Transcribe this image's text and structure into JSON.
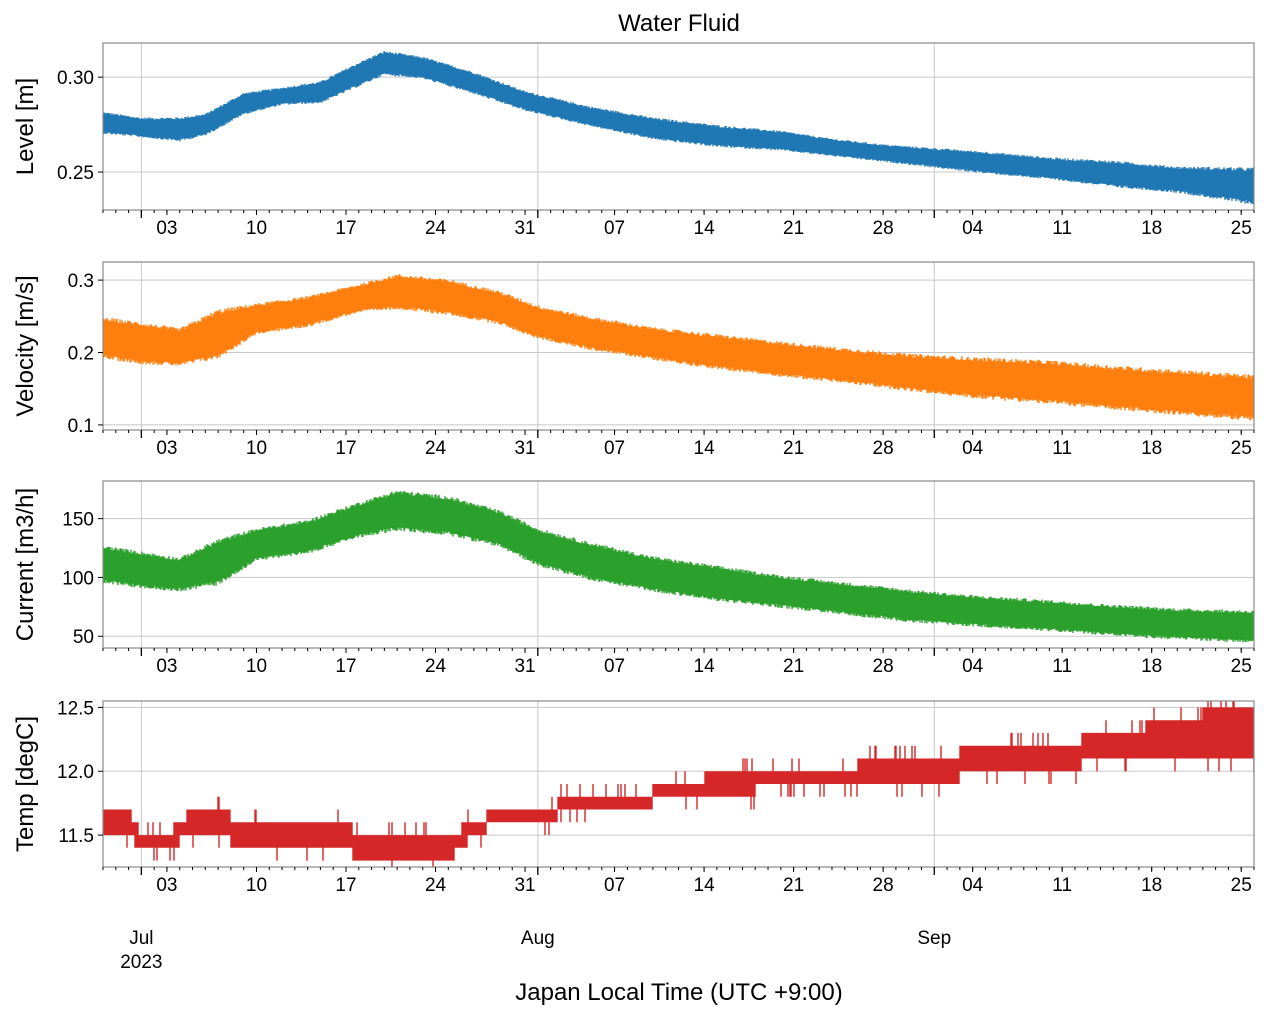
{
  "chart_data": {
    "type": "line",
    "title": "Water Fluid",
    "xlabel": "Japan Local Time (UTC +9:00)",
    "x_axis": {
      "range": [
        "2023-06-28",
        "2023-09-26"
      ],
      "day_ticks": [
        {
          "date": "2023-07-03",
          "label": "03"
        },
        {
          "date": "2023-07-10",
          "label": "10"
        },
        {
          "date": "2023-07-17",
          "label": "17"
        },
        {
          "date": "2023-07-24",
          "label": "24"
        },
        {
          "date": "2023-07-31",
          "label": "31"
        },
        {
          "date": "2023-08-07",
          "label": "07"
        },
        {
          "date": "2023-08-14",
          "label": "14"
        },
        {
          "date": "2023-08-21",
          "label": "21"
        },
        {
          "date": "2023-08-28",
          "label": "28"
        },
        {
          "date": "2023-09-04",
          "label": "04"
        },
        {
          "date": "2023-09-11",
          "label": "11"
        },
        {
          "date": "2023-09-18",
          "label": "18"
        },
        {
          "date": "2023-09-25",
          "label": "25"
        }
      ],
      "month_ticks": [
        {
          "date": "2023-07-01",
          "label": "Jul",
          "sublabel": "2023"
        },
        {
          "date": "2023-08-01",
          "label": "Aug",
          "sublabel": ""
        },
        {
          "date": "2023-09-01",
          "label": "Sep",
          "sublabel": ""
        }
      ]
    },
    "grid": true,
    "panels": [
      {
        "ylabel": "Level [m]",
        "color": "#1f77b4",
        "ylim": [
          0.23,
          0.318
        ],
        "yticks": [
          0.25,
          0.3
        ],
        "ytick_labels": [
          "0.25",
          "0.30"
        ],
        "series": [
          {
            "x": [
              "2023-06-28",
              "2023-07-01",
              "2023-07-04",
              "2023-07-06",
              "2023-07-09",
              "2023-07-12",
              "2023-07-15",
              "2023-07-18",
              "2023-07-20",
              "2023-07-23",
              "2023-07-27",
              "2023-07-31",
              "2023-08-05",
              "2023-08-10",
              "2023-08-15",
              "2023-08-20",
              "2023-08-24",
              "2023-08-28",
              "2023-09-01",
              "2023-09-05",
              "2023-09-10",
              "2023-09-15",
              "2023-09-20",
              "2023-09-26"
            ],
            "low": [
              0.271,
              0.269,
              0.267,
              0.27,
              0.281,
              0.286,
              0.287,
              0.296,
              0.302,
              0.3,
              0.292,
              0.283,
              0.275,
              0.268,
              0.264,
              0.262,
              0.259,
              0.256,
              0.253,
              0.25,
              0.247,
              0.243,
              0.24,
              0.234
            ],
            "high": [
              0.281,
              0.278,
              0.278,
              0.28,
              0.291,
              0.294,
              0.297,
              0.307,
              0.313,
              0.31,
              0.302,
              0.292,
              0.284,
              0.278,
              0.274,
              0.271,
              0.267,
              0.264,
              0.262,
              0.26,
              0.257,
              0.255,
              0.252,
              0.251
            ]
          }
        ]
      },
      {
        "ylabel": "Velocity [m/s]",
        "color": "#ff7f0e",
        "ylim": [
          0.093,
          0.325
        ],
        "yticks": [
          0.1,
          0.2,
          0.3
        ],
        "ytick_labels": [
          "0.1",
          "0.2",
          "0.3"
        ],
        "series": [
          {
            "x": [
              "2023-06-28",
              "2023-07-01",
              "2023-07-04",
              "2023-07-07",
              "2023-07-10",
              "2023-07-14",
              "2023-07-18",
              "2023-07-21",
              "2023-07-25",
              "2023-07-29",
              "2023-08-01",
              "2023-08-05",
              "2023-08-10",
              "2023-08-15",
              "2023-08-20",
              "2023-08-25",
              "2023-08-30",
              "2023-09-04",
              "2023-09-10",
              "2023-09-15",
              "2023-09-20",
              "2023-09-26"
            ],
            "low": [
              0.195,
              0.188,
              0.185,
              0.196,
              0.228,
              0.238,
              0.258,
              0.263,
              0.255,
              0.242,
              0.222,
              0.207,
              0.193,
              0.18,
              0.17,
              0.161,
              0.15,
              0.141,
              0.133,
              0.125,
              0.118,
              0.11
            ],
            "high": [
              0.245,
              0.238,
              0.23,
              0.255,
              0.265,
              0.275,
              0.292,
              0.305,
              0.298,
              0.282,
              0.262,
              0.247,
              0.232,
              0.222,
              0.212,
              0.203,
              0.195,
              0.19,
              0.185,
              0.178,
              0.172,
              0.165
            ]
          }
        ]
      },
      {
        "ylabel": "Current [m3/h]",
        "color": "#2ca02c",
        "ylim": [
          40,
          182
        ],
        "yticks": [
          50,
          100,
          150
        ],
        "ytick_labels": [
          "50",
          "100",
          "150"
        ],
        "series": [
          {
            "x": [
              "2023-06-28",
              "2023-07-01",
              "2023-07-04",
              "2023-07-07",
              "2023-07-10",
              "2023-07-14",
              "2023-07-18",
              "2023-07-21",
              "2023-07-25",
              "2023-07-29",
              "2023-08-01",
              "2023-08-05",
              "2023-08-10",
              "2023-08-15",
              "2023-08-20",
              "2023-08-25",
              "2023-08-30",
              "2023-09-04",
              "2023-09-10",
              "2023-09-15",
              "2023-09-20",
              "2023-09-26"
            ],
            "low": [
              97,
              93,
              90,
              96,
              116,
              122,
              136,
              142,
              138,
              128,
              112,
              100,
              90,
              82,
              76,
              70,
              64,
              60,
              56,
              52,
              49,
              46
            ],
            "high": [
              125,
              120,
              115,
              130,
              140,
              147,
              162,
              172,
              167,
              155,
              140,
              128,
              116,
              108,
              100,
              94,
              88,
              83,
              79,
              75,
              72,
              70
            ]
          }
        ]
      },
      {
        "ylabel": "Temp [degC]",
        "color": "#d62728",
        "ylim": [
          11.25,
          12.55
        ],
        "yticks": [
          11.5,
          12.0,
          12.5
        ],
        "ytick_labels": [
          "11.5",
          "12.0",
          "12.5"
        ],
        "series": [
          {
            "x": [
              "2023-06-28",
              "2023-06-30",
              "2023-07-01",
              "2023-07-03",
              "2023-07-05",
              "2023-07-07",
              "2023-07-09",
              "2023-07-12",
              "2023-07-16",
              "2023-07-19",
              "2023-07-22",
              "2023-07-25",
              "2023-07-27",
              "2023-07-29",
              "2023-08-01",
              "2023-08-04",
              "2023-08-08",
              "2023-08-12",
              "2023-08-16",
              "2023-08-20",
              "2023-08-24",
              "2023-08-28",
              "2023-09-01",
              "2023-09-05",
              "2023-09-10",
              "2023-09-15",
              "2023-09-20",
              "2023-09-24",
              "2023-09-26"
            ],
            "low": [
              11.5,
              11.5,
              11.4,
              11.4,
              11.5,
              11.5,
              11.4,
              11.4,
              11.4,
              11.3,
              11.3,
              11.3,
              11.5,
              11.6,
              11.6,
              11.7,
              11.7,
              11.8,
              11.8,
              11.9,
              11.9,
              11.9,
              11.9,
              12.0,
              12.0,
              12.1,
              12.1,
              12.1,
              12.1
            ],
            "high": [
              11.7,
              11.7,
              11.5,
              11.5,
              11.7,
              11.7,
              11.6,
              11.6,
              11.6,
              11.5,
              11.5,
              11.5,
              11.6,
              11.7,
              11.7,
              11.8,
              11.8,
              11.9,
              12.0,
              12.0,
              12.0,
              12.1,
              12.1,
              12.2,
              12.2,
              12.3,
              12.4,
              12.5,
              12.5
            ]
          }
        ]
      }
    ]
  }
}
